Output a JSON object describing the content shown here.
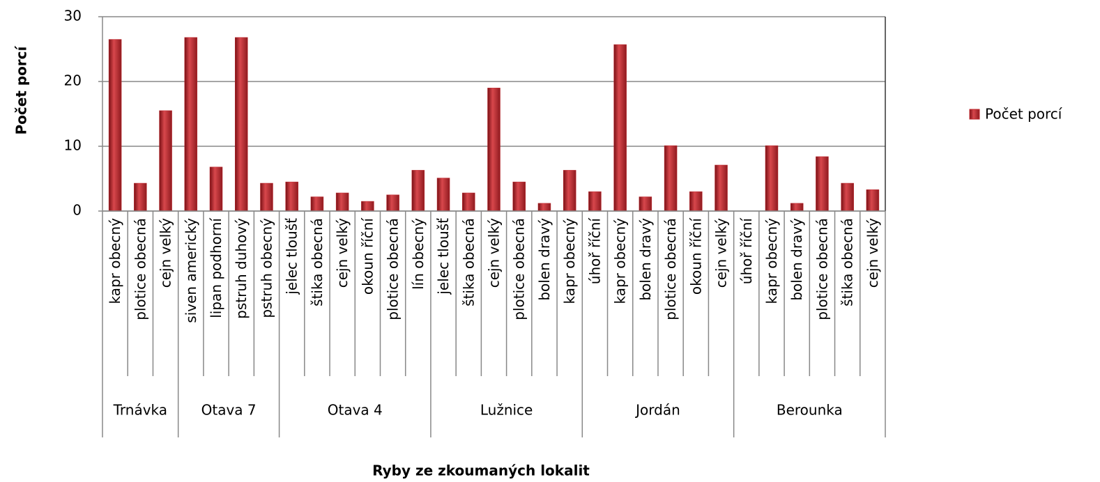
{
  "chart_data": {
    "type": "bar",
    "xlabel": "Ryby ze zkoumaných  lokalit",
    "ylabel": "Počet porcí",
    "series": [
      {
        "name": "Počet porcí",
        "color": "#c0272d"
      }
    ],
    "groups": [
      {
        "label": "Trnávka",
        "categories": [
          "kapr obecný",
          "plotice obecná",
          "cejn velký"
        ],
        "values": [
          26.5,
          4.3,
          15.5
        ]
      },
      {
        "label": "Otava 7",
        "categories": [
          "siven americký",
          "lipan podhorní",
          "pstruh duhový",
          "pstruh obecný"
        ],
        "values": [
          26.8,
          6.8,
          26.8,
          4.3
        ]
      },
      {
        "label": "Otava 4",
        "categories": [
          "jelec tloušť",
          "štika obecná",
          "cejn velký",
          "okoun říční",
          "plotice obecná",
          "lín obecný"
        ],
        "values": [
          4.5,
          2.2,
          2.8,
          1.5,
          2.5,
          6.3
        ]
      },
      {
        "label": "Lužnice",
        "categories": [
          "jelec tloušť",
          "štika obecná",
          "cejn velký",
          "plotice obecná",
          "bolen dravý",
          "kapr obecný"
        ],
        "values": [
          5.1,
          2.8,
          19,
          4.5,
          1.2,
          6.3
        ]
      },
      {
        "label": "Jordán",
        "categories": [
          "úhoř říční",
          "kapr obecný",
          "bolen dravý",
          "plotice obecná",
          "okoun říční",
          "cejn velký"
        ],
        "values": [
          3.0,
          25.7,
          2.2,
          10.1,
          3.0,
          7.1
        ]
      },
      {
        "label": "Berounka",
        "categories": [
          "úhoř říční",
          "kapr obecný",
          "bolen dravý",
          "plotice obecná",
          "štika obecná",
          "cejn velký"
        ],
        "values": [
          0,
          10.1,
          1.2,
          8.4,
          4.3,
          3.3
        ]
      }
    ],
    "ylim": [
      0,
      30
    ],
    "yticks": [
      0,
      10,
      20,
      30
    ],
    "grid": true,
    "legend": "right"
  }
}
